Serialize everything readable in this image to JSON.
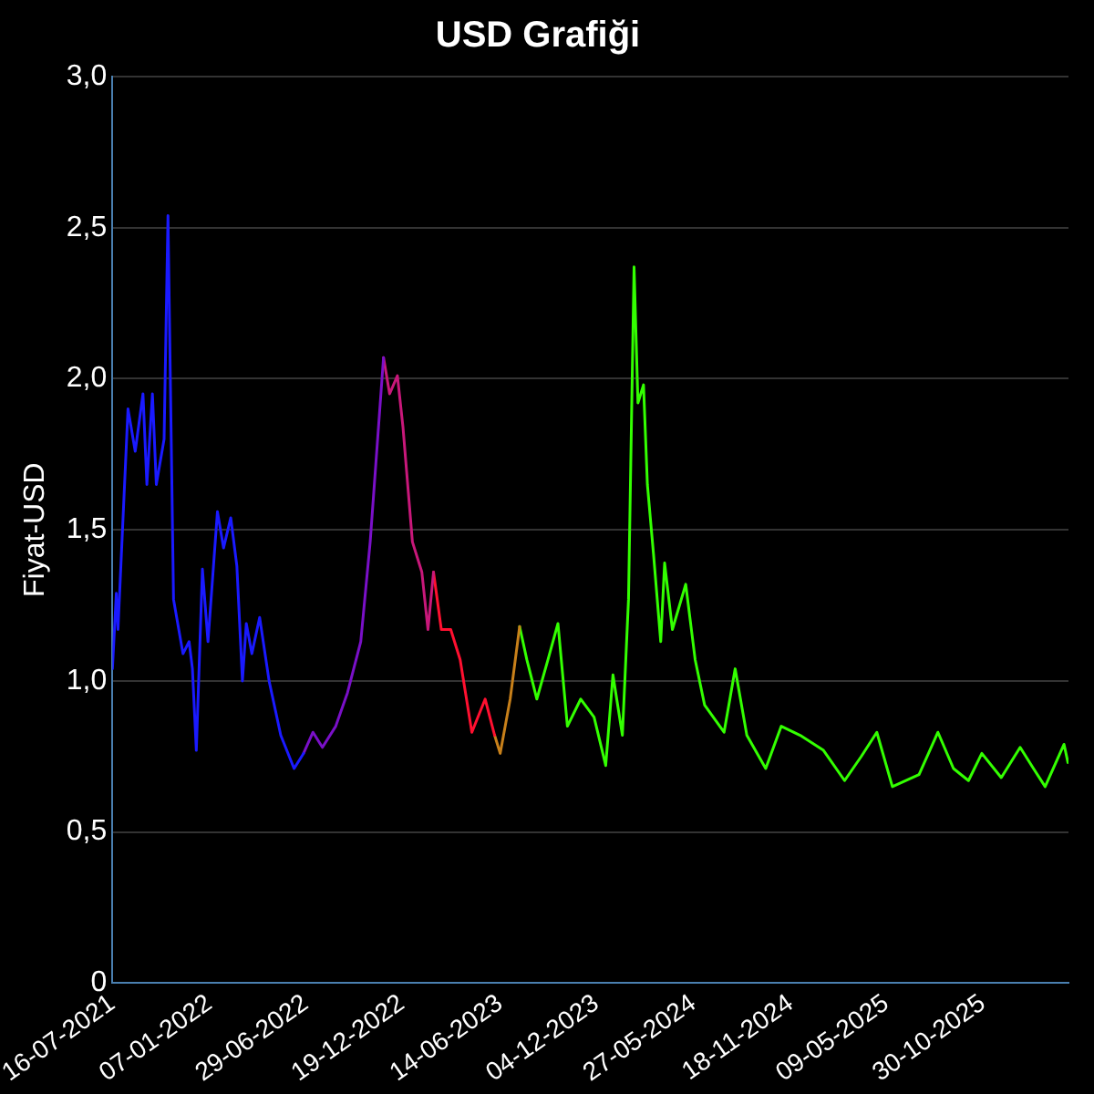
{
  "chart_data": {
    "type": "line",
    "title": "USD Grafiği",
    "ylabel": "Fiyat-USD",
    "xlim": [
      "2021-07-16",
      "2026-04-02"
    ],
    "ylim": [
      0,
      3
    ],
    "xticks": [
      {
        "value": "2021-07-16",
        "label": "16-07-2021"
      },
      {
        "value": "2022-01-07",
        "label": "07-01-2022"
      },
      {
        "value": "2022-06-29",
        "label": "29-06-2022"
      },
      {
        "value": "2022-12-19",
        "label": "19-12-2022"
      },
      {
        "value": "2023-06-14",
        "label": "14-06-2023"
      },
      {
        "value": "2023-12-04",
        "label": "04-12-2023"
      },
      {
        "value": "2024-05-27",
        "label": "27-05-2024"
      },
      {
        "value": "2024-11-18",
        "label": "18-11-2024"
      },
      {
        "value": "2025-05-09",
        "label": "09-05-2025"
      },
      {
        "value": "2025-10-30",
        "label": "30-10-2025"
      }
    ],
    "yticks": [
      0,
      {
        "value": 0.5,
        "label": "0,5"
      },
      {
        "value": 1,
        "label": "1,0"
      },
      {
        "value": 1.5,
        "label": "1,5"
      },
      {
        "value": 2,
        "label": "2,0"
      },
      {
        "value": 2.5,
        "label": "2,5"
      },
      {
        "value": 3,
        "label": "3,0"
      }
    ],
    "grid": "y",
    "legend": false,
    "series": [
      {
        "color": "#1a1aff",
        "x": [
          "2021-07-16",
          "2021-07-23",
          "2021-07-26",
          "2021-08-13",
          "2021-08-26",
          "2021-09-09",
          "2021-09-16",
          "2021-09-26",
          "2021-10-03",
          "2021-10-17",
          "2021-10-24",
          "2021-11-03",
          "2021-11-20",
          "2021-12-01",
          "2021-12-07",
          "2021-12-14",
          "2021-12-25",
          "2022-01-04",
          "2022-01-21",
          "2022-02-01",
          "2022-02-14",
          "2022-02-25",
          "2022-03-07",
          "2022-03-14",
          "2022-03-24",
          "2022-04-07",
          "2022-04-24",
          "2022-05-15",
          "2022-06-08",
          "2022-06-25"
        ],
        "values": [
          1.04,
          1.29,
          1.17,
          1.9,
          1.76,
          1.95,
          1.65,
          1.95,
          1.65,
          1.8,
          2.54,
          1.27,
          1.09,
          1.13,
          1.04,
          0.77,
          1.37,
          1.13,
          1.56,
          1.44,
          1.54,
          1.38,
          1.0,
          1.19,
          1.09,
          1.21,
          1.0,
          0.82,
          0.71,
          0.76
        ]
      },
      {
        "color": "#7a10c8",
        "x": [
          "2022-06-25",
          "2022-07-12",
          "2022-07-29",
          "2022-08-22",
          "2022-09-12",
          "2022-10-06",
          "2022-10-23",
          "2022-11-16"
        ],
        "values": [
          0.76,
          0.83,
          0.78,
          0.85,
          0.96,
          1.13,
          1.46,
          2.07
        ]
      },
      {
        "color": "#c8187a",
        "x": [
          "2022-11-16",
          "2022-11-27",
          "2022-12-11",
          "2022-12-21",
          "2023-01-07",
          "2023-01-24",
          "2023-02-04",
          "2023-02-14"
        ],
        "values": [
          2.07,
          1.95,
          2.01,
          1.84,
          1.46,
          1.36,
          1.17,
          1.36
        ]
      },
      {
        "color": "#ff1030",
        "x": [
          "2023-02-14",
          "2023-02-28",
          "2023-03-17",
          "2023-04-03",
          "2023-04-24",
          "2023-05-18",
          "2023-06-04"
        ],
        "values": [
          1.36,
          1.17,
          1.17,
          1.07,
          0.83,
          0.94,
          0.82
        ]
      },
      {
        "color": "#c8801a",
        "x": [
          "2023-06-04",
          "2023-06-14",
          "2023-07-02",
          "2023-07-19"
        ],
        "values": [
          0.82,
          0.76,
          0.94,
          1.18
        ]
      },
      {
        "color": "#33ff00",
        "x": [
          "2023-07-19",
          "2023-08-01",
          "2023-08-19",
          "2023-09-08",
          "2023-09-26",
          "2023-10-13",
          "2023-11-06",
          "2023-11-30",
          "2023-12-21",
          "2024-01-03",
          "2024-01-20",
          "2024-01-31",
          "2024-02-10",
          "2024-02-17",
          "2024-02-27",
          "2024-03-05",
          "2024-03-16",
          "2024-03-29",
          "2024-04-05",
          "2024-04-19",
          "2024-05-13",
          "2024-05-30",
          "2024-06-16",
          "2024-07-21",
          "2024-08-10",
          "2024-08-31",
          "2024-10-04",
          "2024-11-01",
          "2024-12-05",
          "2025-01-16",
          "2025-02-23",
          "2025-03-25",
          "2025-04-22",
          "2025-05-20",
          "2025-07-07",
          "2025-08-10",
          "2025-09-07",
          "2025-10-04",
          "2025-10-28",
          "2025-12-02",
          "2026-01-05",
          "2026-01-29",
          "2026-02-19",
          "2026-03-25",
          "2026-04-01"
        ],
        "values": [
          1.18,
          1.07,
          0.94,
          1.07,
          1.19,
          0.85,
          0.94,
          0.88,
          0.72,
          1.02,
          0.82,
          1.27,
          2.37,
          1.92,
          1.98,
          1.65,
          1.42,
          1.13,
          1.39,
          1.17,
          1.32,
          1.07,
          0.92,
          0.83,
          1.04,
          0.82,
          0.71,
          0.85,
          0.82,
          0.77,
          0.67,
          0.75,
          0.83,
          0.65,
          0.69,
          0.83,
          0.71,
          0.67,
          0.76,
          0.68,
          0.78,
          0.71,
          0.65,
          0.79,
          0.73
        ]
      }
    ]
  }
}
